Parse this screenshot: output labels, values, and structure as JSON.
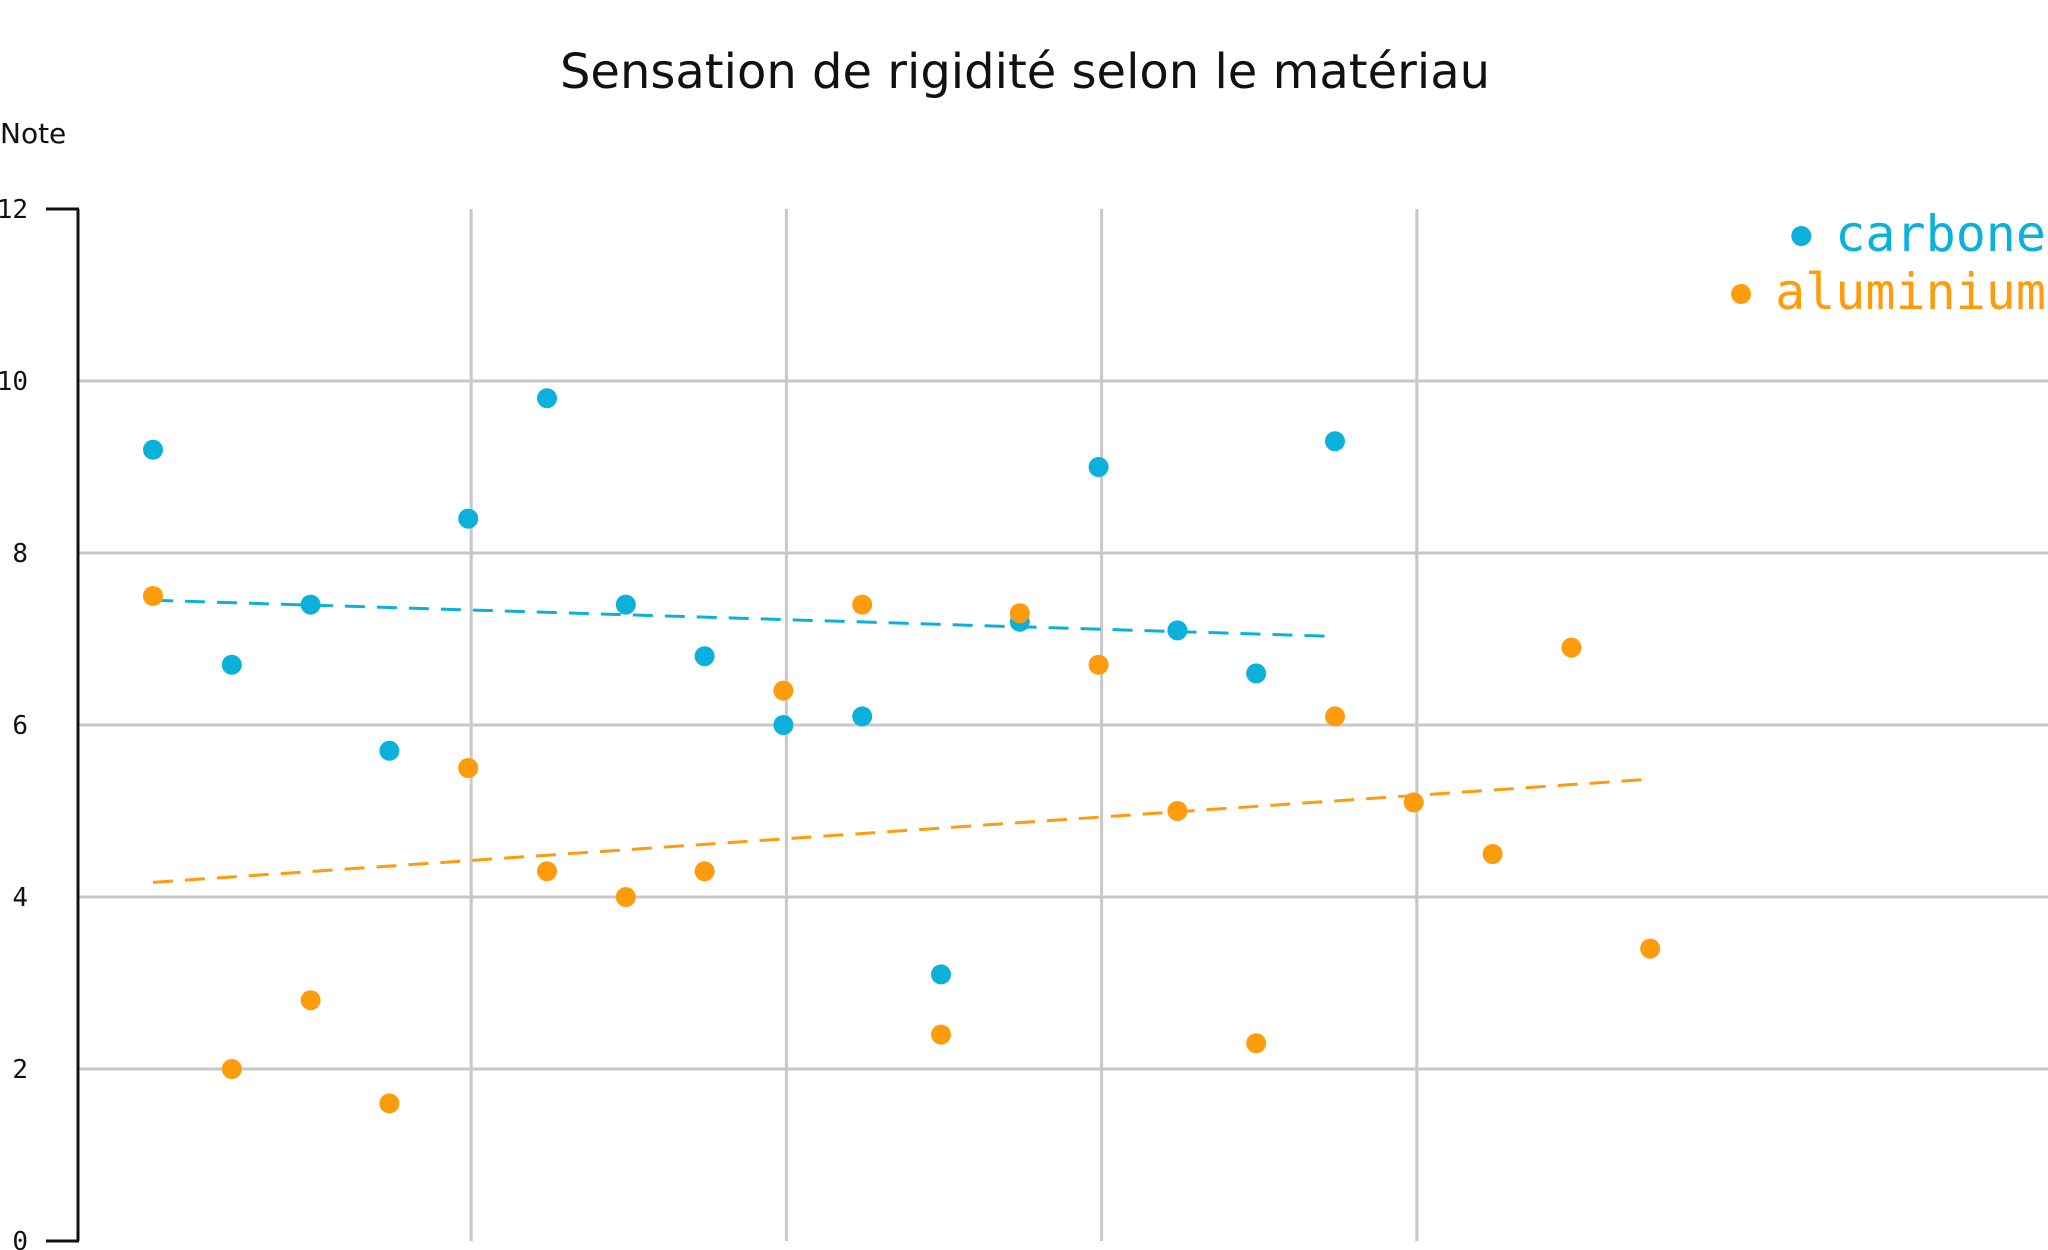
{
  "chart_data": {
    "type": "scatter",
    "title": "Sensation de rigidité selon le matériau",
    "xlabel": "",
    "ylabel": "Note",
    "ylim": [
      0,
      12
    ],
    "yticks": [
      "0",
      "2",
      "4",
      "6",
      "8",
      "10",
      "12"
    ],
    "grid": true,
    "legend_position": "top-right",
    "series": [
      {
        "name": "carbone",
        "color": "#0bb0db",
        "points": [
          [
            1,
            9.2
          ],
          [
            2,
            6.7
          ],
          [
            3,
            7.4
          ],
          [
            4,
            5.7
          ],
          [
            5,
            8.4
          ],
          [
            6,
            9.8
          ],
          [
            7,
            7.4
          ],
          [
            8,
            6.8
          ],
          [
            9,
            6.0
          ],
          [
            10,
            6.1
          ],
          [
            11,
            3.1
          ],
          [
            12,
            7.2
          ],
          [
            13,
            9.0
          ],
          [
            14,
            7.1
          ],
          [
            15,
            6.6
          ],
          [
            16,
            9.3
          ]
        ],
        "trend": {
          "x": [
            1,
            16
          ],
          "y": [
            7.45,
            7.03
          ]
        }
      },
      {
        "name": "aluminium",
        "color": "#ff9c0d",
        "points": [
          [
            1,
            7.5
          ],
          [
            2,
            2.0
          ],
          [
            3,
            2.8
          ],
          [
            4,
            1.6
          ],
          [
            5,
            5.5
          ],
          [
            6,
            4.3
          ],
          [
            7,
            4.0
          ],
          [
            8,
            4.3
          ],
          [
            9,
            6.4
          ],
          [
            10,
            7.4
          ],
          [
            11,
            2.4
          ],
          [
            12,
            7.3
          ],
          [
            13,
            6.7
          ],
          [
            14,
            5.0
          ],
          [
            15,
            2.3
          ],
          [
            16,
            6.1
          ],
          [
            17,
            5.1
          ],
          [
            18,
            4.5
          ],
          [
            19,
            6.9
          ],
          [
            20,
            3.4
          ]
        ],
        "trend": {
          "x": [
            1,
            20
          ],
          "y": [
            4.17,
            5.37
          ]
        }
      }
    ]
  }
}
